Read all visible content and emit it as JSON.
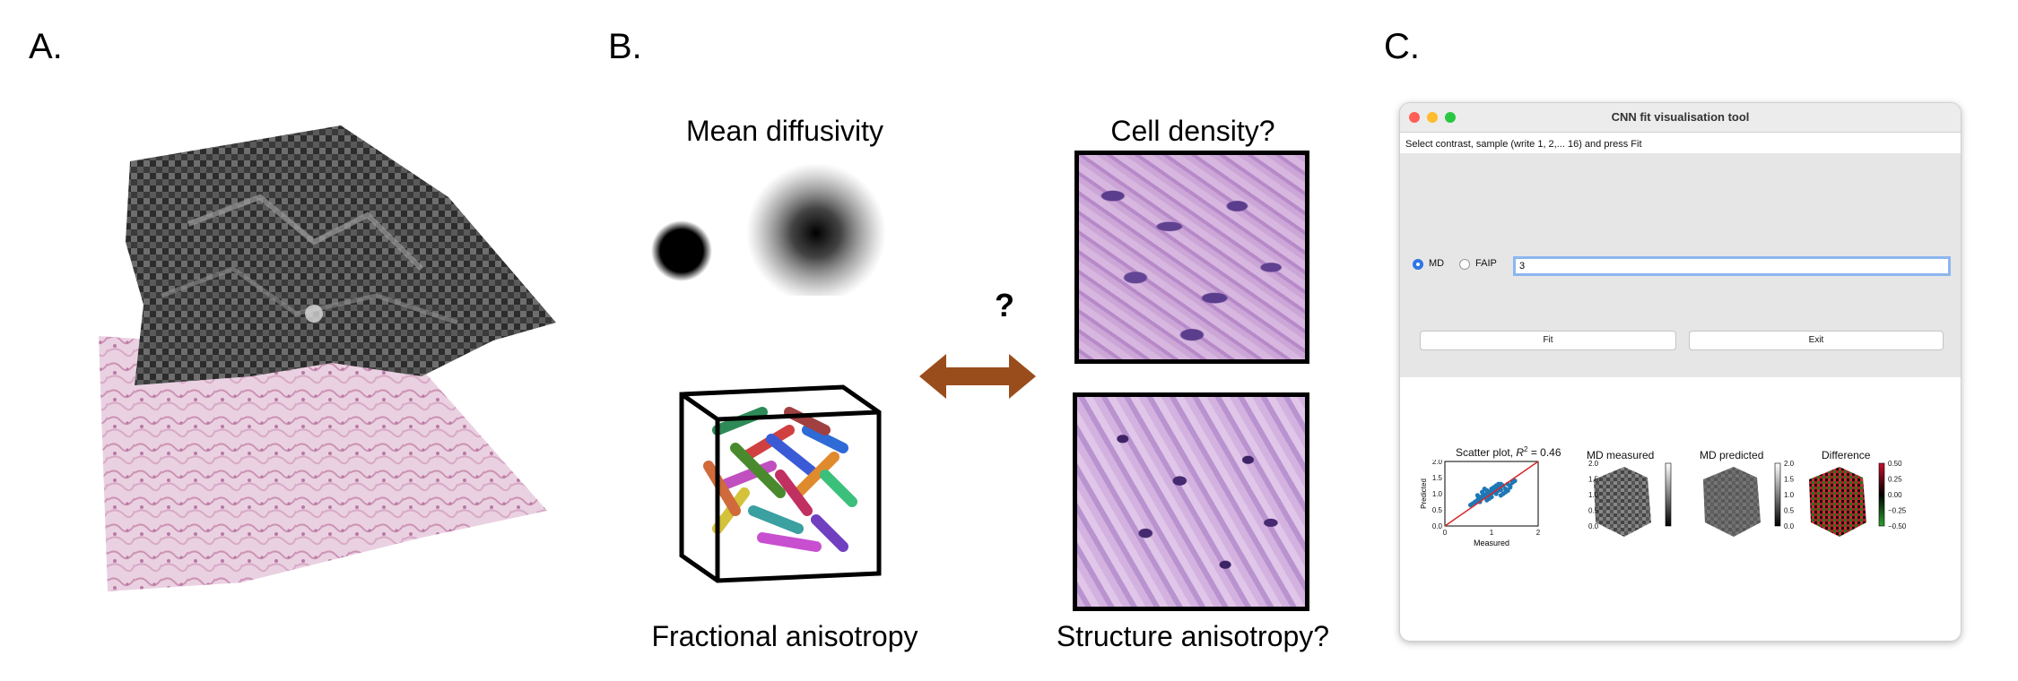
{
  "panels": {
    "a": "A.",
    "b": "B.",
    "c": "C."
  },
  "panel_b": {
    "mean_diffusivity": "Mean diffusivity",
    "cell_density": "Cell density?",
    "fractional_anisotropy": "Fractional anisotropy",
    "structure_anisotropy": "Structure anisotropy?",
    "question_mark": "?",
    "arrow_color": "#9a4d1c"
  },
  "app": {
    "title": "CNN fit visualisation tool",
    "instruction": "Select contrast, sample (write 1, 2,... 16) and press Fit",
    "radio_md": "MD",
    "radio_faip": "FAIP",
    "sample_value": "3",
    "fit_label": "Fit",
    "exit_label": "Exit",
    "selected": "MD",
    "accent": "#2f76e6"
  },
  "plots": {
    "scatter_title_prefix": "Scatter plot, ",
    "scatter_title_r2": "R",
    "scatter_title_value": " = 0.46",
    "xlabel": "Measured",
    "ylabel": "Predicted",
    "x_ticks": [
      "0",
      "1",
      "2"
    ],
    "y_ticks": [
      "0.0",
      "0.5",
      "1.0",
      "1.5",
      "2.0"
    ],
    "md_measured": "MD measured",
    "md_predicted": "MD predicted",
    "difference": "Difference",
    "gray_cbar_ticks": [
      "2.0",
      "1.5",
      "1.0",
      "0.5",
      "0.0"
    ],
    "diff_cbar_ticks": [
      "0.50",
      "0.25",
      "0.00",
      "−0.25",
      "−0.50"
    ]
  },
  "chart_data": {
    "type": "scatter",
    "title": "Scatter plot, R2 = 0.46",
    "xlabel": "Measured",
    "ylabel": "Predicted",
    "xlim": [
      0,
      2
    ],
    "ylim": [
      0,
      2
    ],
    "series": [
      {
        "color": "#1f77b4",
        "x": [
          0.55,
          0.6,
          0.65,
          0.7,
          0.72,
          0.75,
          0.78,
          0.8,
          0.82,
          0.85,
          0.88,
          0.9,
          0.92,
          0.95,
          0.98,
          1.0,
          1.02,
          1.05,
          1.08,
          1.1,
          1.12,
          1.15,
          1.18,
          1.2,
          1.25,
          1.3,
          1.35,
          1.4,
          1.45,
          1.5,
          0.7,
          0.8,
          0.9,
          1.0,
          1.1,
          1.2,
          1.3,
          0.85,
          0.95,
          1.05,
          0.75,
          1.15,
          1.25,
          1.35,
          0.65,
          0.9,
          1.0,
          1.1,
          1.2,
          1.4
        ],
        "y": [
          0.65,
          0.7,
          0.75,
          0.8,
          0.85,
          0.82,
          0.9,
          0.88,
          0.95,
          0.92,
          0.98,
          1.0,
          0.95,
          1.05,
          1.0,
          1.02,
          1.1,
          1.05,
          1.12,
          1.08,
          1.15,
          1.1,
          1.2,
          1.12,
          1.25,
          1.15,
          1.3,
          1.2,
          1.35,
          1.4,
          0.95,
          1.05,
          1.1,
          0.9,
          1.0,
          1.3,
          1.05,
          1.15,
          0.85,
          1.2,
          0.75,
          1.3,
          1.0,
          1.1,
          0.72,
          0.8,
          1.15,
          1.25,
          0.95,
          1.25
        ]
      }
    ],
    "reference_line": {
      "color": "#d62728",
      "x": [
        0,
        2
      ],
      "y": [
        0,
        2
      ]
    }
  }
}
